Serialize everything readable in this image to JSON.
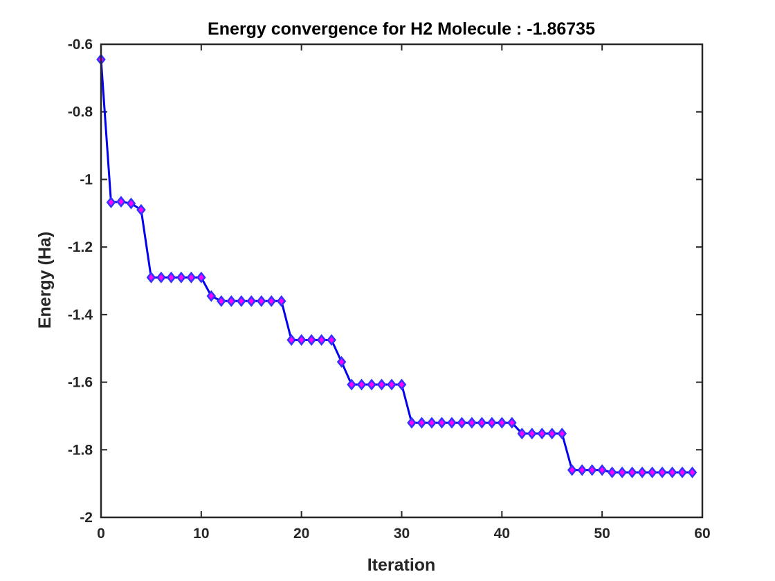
{
  "chart_data": {
    "type": "line",
    "title": "Energy convergence for H2 Molecule  : -1.86735",
    "xlabel": "Iteration",
    "ylabel": "Energy (Ha)",
    "xlim": [
      0,
      60
    ],
    "ylim": [
      -2,
      -0.6
    ],
    "xticks": [
      "0",
      "10",
      "20",
      "30",
      "40",
      "50",
      "60"
    ],
    "yticks": [
      "-2",
      "-1.8",
      "-1.6",
      "-1.4",
      "-1.2",
      "-1",
      "-0.8",
      "-0.6"
    ],
    "grid": false,
    "legend": "none",
    "line_color": "#0000ee",
    "marker": "diamond",
    "marker_edge_color": "#3333ff",
    "marker_face_color": "#ff00ff",
    "series": [
      {
        "x": [
          0,
          1,
          2,
          3,
          4,
          5,
          6,
          7,
          8,
          9,
          10,
          11,
          12,
          13,
          14,
          15,
          16,
          17,
          18,
          19,
          20,
          21,
          22,
          23,
          24,
          25,
          26,
          27,
          28,
          29,
          30,
          31,
          32,
          33,
          34,
          35,
          36,
          37,
          38,
          39,
          40,
          41,
          42,
          43,
          44,
          45,
          46,
          47,
          48,
          49,
          50,
          51,
          52,
          53,
          54,
          55,
          56,
          57,
          58,
          59
        ],
        "y": [
          -0.645,
          -1.068,
          -1.066,
          -1.071,
          -1.09,
          -1.29,
          -1.29,
          -1.29,
          -1.29,
          -1.29,
          -1.29,
          -1.345,
          -1.36,
          -1.36,
          -1.36,
          -1.36,
          -1.36,
          -1.36,
          -1.36,
          -1.475,
          -1.475,
          -1.475,
          -1.475,
          -1.475,
          -1.54,
          -1.607,
          -1.607,
          -1.607,
          -1.607,
          -1.607,
          -1.607,
          -1.72,
          -1.72,
          -1.72,
          -1.72,
          -1.72,
          -1.72,
          -1.72,
          -1.72,
          -1.72,
          -1.72,
          -1.72,
          -1.752,
          -1.752,
          -1.752,
          -1.752,
          -1.752,
          -1.86,
          -1.86,
          -1.86,
          -1.86,
          -1.867,
          -1.867,
          -1.867,
          -1.867,
          -1.867,
          -1.867,
          -1.867,
          -1.867,
          -1.867
        ]
      }
    ]
  }
}
